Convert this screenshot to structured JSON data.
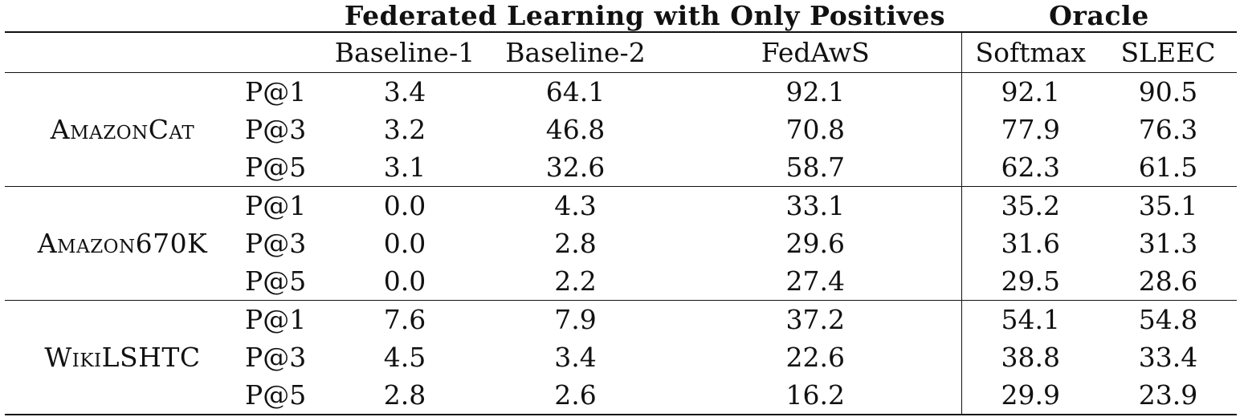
{
  "headers": {
    "fl_group": "Federated Learning with Only Positives",
    "oracle_group": "Oracle",
    "columns": [
      "Baseline-1",
      "Baseline-2",
      "FedAwS",
      "Softmax",
      "SLEEC"
    ]
  },
  "datasets": [
    {
      "name": "AmazonCat",
      "rows": [
        {
          "metric": "P@1",
          "values": [
            "3.4",
            "64.1",
            "92.1",
            "92.1",
            "90.5"
          ]
        },
        {
          "metric": "P@3",
          "values": [
            "3.2",
            "46.8",
            "70.8",
            "77.9",
            "76.3"
          ]
        },
        {
          "metric": "P@5",
          "values": [
            "3.1",
            "32.6",
            "58.7",
            "62.3",
            "61.5"
          ]
        }
      ]
    },
    {
      "name": "Amazon670K",
      "rows": [
        {
          "metric": "P@1",
          "values": [
            "0.0",
            "4.3",
            "33.1",
            "35.2",
            "35.1"
          ]
        },
        {
          "metric": "P@3",
          "values": [
            "0.0",
            "2.8",
            "29.6",
            "31.6",
            "31.3"
          ]
        },
        {
          "metric": "P@5",
          "values": [
            "0.0",
            "2.2",
            "27.4",
            "29.5",
            "28.6"
          ]
        }
      ]
    },
    {
      "name": "WikiLSHTC",
      "rows": [
        {
          "metric": "P@1",
          "values": [
            "7.6",
            "7.9",
            "37.2",
            "54.1",
            "54.8"
          ]
        },
        {
          "metric": "P@3",
          "values": [
            "4.5",
            "3.4",
            "22.6",
            "38.8",
            "33.4"
          ]
        },
        {
          "metric": "P@5",
          "values": [
            "2.8",
            "2.6",
            "16.2",
            "29.9",
            "23.9"
          ]
        }
      ]
    }
  ]
}
